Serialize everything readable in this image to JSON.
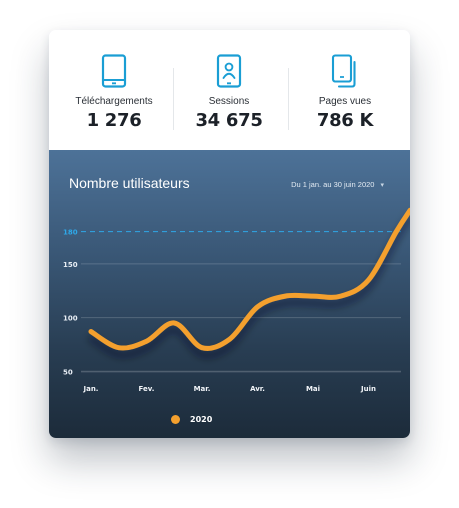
{
  "stats": [
    {
      "icon": "smartphone-icon",
      "label": "Téléchargements",
      "value": "1 276"
    },
    {
      "icon": "user-profile-icon",
      "label": "Sessions",
      "value": "34 675"
    },
    {
      "icon": "pages-icon",
      "label": "Pages vues",
      "value": "786 K"
    }
  ],
  "chart": {
    "title": "Nombre utilisateurs",
    "date_range": "Du 1 jan. au 30 juin 2020",
    "dropdown_icon": "chevron-down-icon"
  },
  "colors": {
    "accent": "#1a9ed4",
    "line": "#f4a02e",
    "highlight_tick": "#2ea8e8"
  },
  "chart_data": {
    "type": "line",
    "title": "Nombre utilisateurs",
    "categories": [
      "Jan.",
      "Fev.",
      "Mar.",
      "Avr.",
      "Mai",
      "Juin"
    ],
    "yticks": [
      50,
      100,
      150,
      180
    ],
    "highlight_tick": 180,
    "ylim": [
      0,
      200
    ],
    "grid": true,
    "legend": "bottom-left",
    "series": [
      {
        "name": "2020",
        "x": [
          0,
          0.5,
          1,
          1.5,
          2,
          2.5,
          3,
          3.5,
          4,
          4.5,
          5,
          5.5,
          5.75
        ],
        "y": [
          87,
          72,
          78,
          95,
          72,
          80,
          110,
          120,
          120,
          120,
          135,
          180,
          200
        ]
      }
    ]
  }
}
